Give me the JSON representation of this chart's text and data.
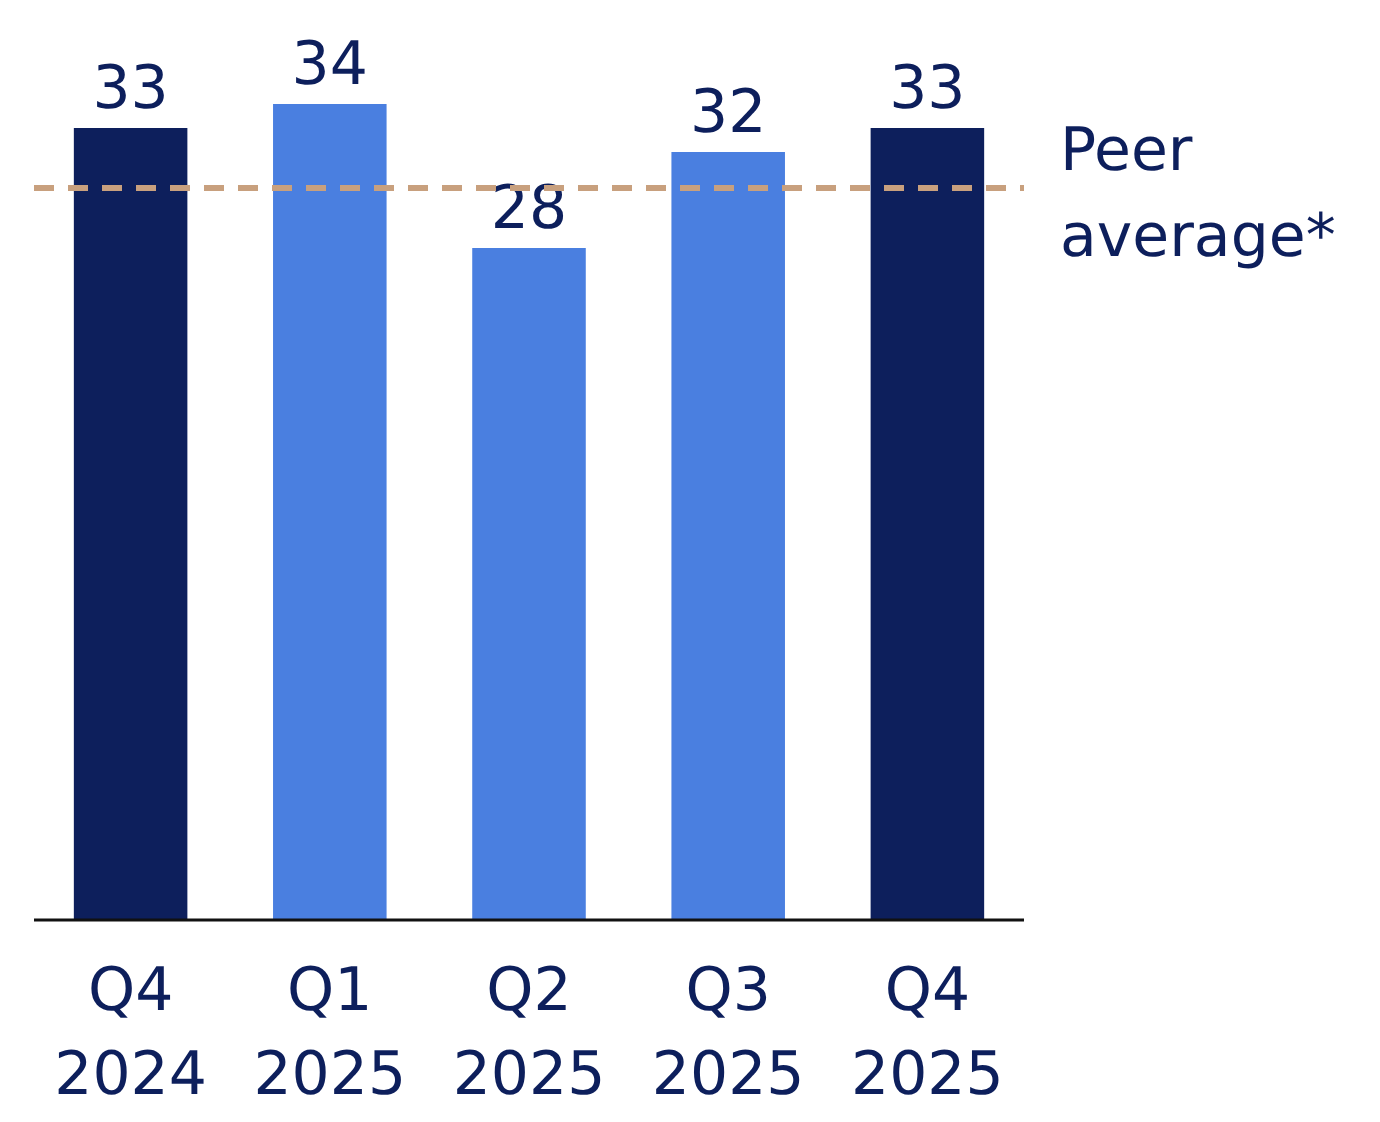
{
  "chart_data": {
    "type": "bar",
    "categories": [
      "Q4 2024",
      "Q1 2025",
      "Q2 2025",
      "Q3 2025",
      "Q4 2025"
    ],
    "values": [
      33,
      34,
      28,
      32,
      33
    ],
    "colors": [
      "#0d1f5c",
      "#4a7fe0",
      "#4a7fe0",
      "#4a7fe0",
      "#0d1f5c"
    ],
    "tick_labels": "x",
    "data_labels": true,
    "ref_lines": [
      {
        "axis": "y",
        "value": 30.5,
        "label": "Peer average*",
        "color": "#c8a07e",
        "line_style": "dashed"
      }
    ]
  }
}
